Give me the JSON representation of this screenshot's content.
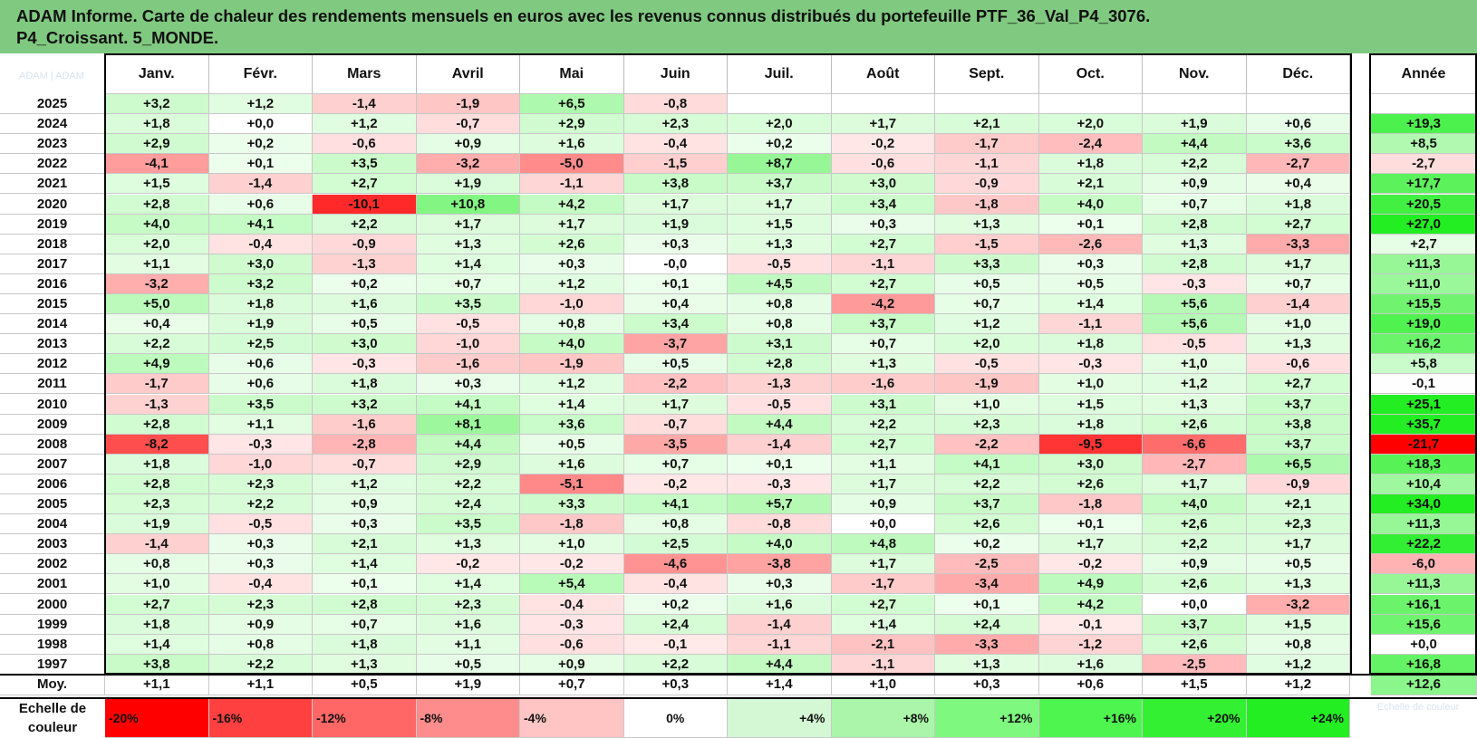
{
  "title_lines": [
    "ADAM Informe. Carte de chaleur des rendements mensuels en euros avec les revenus connus distribués du portefeuille PTF_36_Val_P4_3076.",
    "P4_Croissant. 5_MONDE."
  ],
  "corner_label": "ADAM | ADAM",
  "scale_ghost": "Echelle de couleur",
  "chart_data": {
    "type": "heatmap",
    "title": "ADAM Informe. Carte de chaleur des rendements mensuels en euros avec les revenus connus distribués du portefeuille PTF_36_Val_P4_3076. P4_Croissant. 5_MONDE.",
    "columns": [
      "Janv.",
      "Févr.",
      "Mars",
      "Avril",
      "Mai",
      "Juin",
      "Juil.",
      "Août",
      "Sept.",
      "Oct.",
      "Nov.",
      "Déc."
    ],
    "year_column": "Année",
    "rows": [
      {
        "year": "2025",
        "months": [
          "+3,2",
          "+1,2",
          "-1,4",
          "-1,9",
          "+6,5",
          "-0,8",
          "",
          "",
          "",
          "",
          "",
          ""
        ],
        "annual": ""
      },
      {
        "year": "2024",
        "months": [
          "+1,8",
          "+0,0",
          "+1,2",
          "-0,7",
          "+2,9",
          "+2,3",
          "+2,0",
          "+1,7",
          "+2,1",
          "+2,0",
          "+1,9",
          "+0,6"
        ],
        "annual": "+19,3"
      },
      {
        "year": "2023",
        "months": [
          "+2,9",
          "+0,2",
          "-0,6",
          "+0,9",
          "+1,6",
          "-0,4",
          "+0,2",
          "-0,2",
          "-1,7",
          "-2,4",
          "+4,4",
          "+3,6"
        ],
        "annual": "+8,5"
      },
      {
        "year": "2022",
        "months": [
          "-4,1",
          "+0,1",
          "+3,5",
          "-3,2",
          "-5,0",
          "-1,5",
          "+8,7",
          "-0,6",
          "-1,1",
          "+1,8",
          "+2,2",
          "-2,7"
        ],
        "annual": "-2,7"
      },
      {
        "year": "2021",
        "months": [
          "+1,5",
          "-1,4",
          "+2,7",
          "+1,9",
          "-1,1",
          "+3,8",
          "+3,7",
          "+3,0",
          "-0,9",
          "+2,1",
          "+0,9",
          "+0,4"
        ],
        "annual": "+17,7"
      },
      {
        "year": "2020",
        "months": [
          "+2,8",
          "+0,6",
          "-10,1",
          "+10,8",
          "+4,2",
          "+1,7",
          "+1,7",
          "+3,4",
          "-1,8",
          "+4,0",
          "+0,7",
          "+1,8"
        ],
        "annual": "+20,5"
      },
      {
        "year": "2019",
        "months": [
          "+4,0",
          "+4,1",
          "+2,2",
          "+1,7",
          "+1,7",
          "+1,9",
          "+1,5",
          "+0,3",
          "+1,3",
          "+0,1",
          "+2,8",
          "+2,7"
        ],
        "annual": "+27,0"
      },
      {
        "year": "2018",
        "months": [
          "+2,0",
          "-0,4",
          "-0,9",
          "+1,3",
          "+2,6",
          "+0,3",
          "+1,3",
          "+2,7",
          "-1,5",
          "-2,6",
          "+1,3",
          "-3,3"
        ],
        "annual": "+2,7"
      },
      {
        "year": "2017",
        "months": [
          "+1,1",
          "+3,0",
          "-1,3",
          "+1,4",
          "+0,3",
          "-0,0",
          "-0,5",
          "-1,1",
          "+3,3",
          "+0,3",
          "+2,8",
          "+1,7"
        ],
        "annual": "+11,3"
      },
      {
        "year": "2016",
        "months": [
          "-3,2",
          "+3,2",
          "+0,2",
          "+0,7",
          "+1,2",
          "+0,1",
          "+4,5",
          "+2,7",
          "+0,5",
          "+0,5",
          "-0,3",
          "+0,7"
        ],
        "annual": "+11,0"
      },
      {
        "year": "2015",
        "months": [
          "+5,0",
          "+1,8",
          "+1,6",
          "+3,5",
          "-1,0",
          "+0,4",
          "+0,8",
          "-4,2",
          "+0,7",
          "+1,4",
          "+5,6",
          "-1,4"
        ],
        "annual": "+15,5"
      },
      {
        "year": "2014",
        "months": [
          "+0,4",
          "+1,9",
          "+0,5",
          "-0,5",
          "+0,8",
          "+3,4",
          "+0,8",
          "+3,7",
          "+1,2",
          "-1,1",
          "+5,6",
          "+1,0"
        ],
        "annual": "+19,0"
      },
      {
        "year": "2013",
        "months": [
          "+2,2",
          "+2,5",
          "+3,0",
          "-1,0",
          "+4,0",
          "-3,7",
          "+3,1",
          "+0,7",
          "+2,0",
          "+1,8",
          "-0,5",
          "+1,3"
        ],
        "annual": "+16,2"
      },
      {
        "year": "2012",
        "months": [
          "+4,9",
          "+0,6",
          "-0,3",
          "-1,6",
          "-1,9",
          "+0,5",
          "+2,8",
          "+1,3",
          "-0,5",
          "-0,3",
          "+1,0",
          "-0,6"
        ],
        "annual": "+5,8"
      },
      {
        "year": "2011",
        "months": [
          "-1,7",
          "+0,6",
          "+1,8",
          "+0,3",
          "+1,2",
          "-2,2",
          "-1,3",
          "-1,6",
          "-1,9",
          "+1,0",
          "+1,2",
          "+2,7"
        ],
        "annual": "-0,1"
      },
      {
        "year": "2010",
        "months": [
          "-1,3",
          "+3,5",
          "+3,2",
          "+4,1",
          "+1,4",
          "+1,7",
          "-0,5",
          "+3,1",
          "+1,0",
          "+1,5",
          "+1,3",
          "+3,7"
        ],
        "annual": "+25,1"
      },
      {
        "year": "2009",
        "months": [
          "+2,8",
          "+1,1",
          "-1,6",
          "+8,1",
          "+3,6",
          "-0,7",
          "+4,4",
          "+2,2",
          "+2,3",
          "+1,8",
          "+2,6",
          "+3,8"
        ],
        "annual": "+35,7"
      },
      {
        "year": "2008",
        "months": [
          "-8,2",
          "-0,3",
          "-2,8",
          "+4,4",
          "+0,5",
          "-3,5",
          "-1,4",
          "+2,7",
          "-2,2",
          "-9,5",
          "-6,6",
          "+3,7"
        ],
        "annual": "-21,7"
      },
      {
        "year": "2007",
        "months": [
          "+1,8",
          "-1,0",
          "-0,7",
          "+2,9",
          "+1,6",
          "+0,7",
          "+0,1",
          "+1,1",
          "+4,1",
          "+3,0",
          "-2,7",
          "+6,5"
        ],
        "annual": "+18,3"
      },
      {
        "year": "2006",
        "months": [
          "+2,8",
          "+2,3",
          "+1,2",
          "+2,2",
          "-5,1",
          "-0,2",
          "-0,3",
          "+1,7",
          "+2,2",
          "+2,6",
          "+1,7",
          "-0,9"
        ],
        "annual": "+10,4"
      },
      {
        "year": "2005",
        "months": [
          "+2,3",
          "+2,2",
          "+0,9",
          "+2,4",
          "+3,3",
          "+4,1",
          "+5,7",
          "+0,9",
          "+3,7",
          "-1,8",
          "+4,0",
          "+2,1"
        ],
        "annual": "+34,0"
      },
      {
        "year": "2004",
        "months": [
          "+1,9",
          "-0,5",
          "+0,3",
          "+3,5",
          "-1,8",
          "+0,8",
          "-0,8",
          "+0,0",
          "+2,6",
          "+0,1",
          "+2,6",
          "+2,3"
        ],
        "annual": "+11,3"
      },
      {
        "year": "2003",
        "months": [
          "-1,4",
          "+0,3",
          "+2,1",
          "+1,3",
          "+1,0",
          "+2,5",
          "+4,0",
          "+4,8",
          "+0,2",
          "+1,7",
          "+2,2",
          "+1,7"
        ],
        "annual": "+22,2"
      },
      {
        "year": "2002",
        "months": [
          "+0,8",
          "+0,3",
          "+1,4",
          "-0,2",
          "-0,2",
          "-4,6",
          "-3,8",
          "+1,7",
          "-2,5",
          "-0,2",
          "+0,9",
          "+0,5"
        ],
        "annual": "-6,0"
      },
      {
        "year": "2001",
        "months": [
          "+1,0",
          "-0,4",
          "+0,1",
          "+1,4",
          "+5,4",
          "-0,4",
          "+0,3",
          "-1,7",
          "-3,4",
          "+4,9",
          "+2,6",
          "+1,3"
        ],
        "annual": "+11,3"
      },
      {
        "year": "2000",
        "months": [
          "+2,7",
          "+2,3",
          "+2,8",
          "+2,3",
          "-0,4",
          "+0,2",
          "+1,6",
          "+2,7",
          "+0,1",
          "+4,2",
          "+0,0",
          "-3,2"
        ],
        "annual": "+16,1"
      },
      {
        "year": "1999",
        "months": [
          "+1,8",
          "+0,9",
          "+0,7",
          "+1,6",
          "-0,3",
          "+2,4",
          "-1,4",
          "+1,4",
          "+2,4",
          "-0,1",
          "+3,7",
          "+1,5"
        ],
        "annual": "+15,6"
      },
      {
        "year": "1998",
        "months": [
          "+1,4",
          "+0,8",
          "+1,8",
          "+1,1",
          "-0,6",
          "-0,1",
          "-1,1",
          "-2,1",
          "-3,3",
          "-1,2",
          "+2,6",
          "+0,8"
        ],
        "annual": "+0,0"
      },
      {
        "year": "1997",
        "months": [
          "+3,8",
          "+2,2",
          "+1,3",
          "+0,5",
          "+0,9",
          "+2,2",
          "+4,4",
          "-1,1",
          "+1,3",
          "+1,6",
          "-2,5",
          "+1,2"
        ],
        "annual": "+16,8"
      }
    ],
    "average": {
      "label": "Moy.",
      "months": [
        "+1,1",
        "+1,1",
        "+0,5",
        "+1,9",
        "+0,7",
        "+0,3",
        "+1,4",
        "+1,0",
        "+0,3",
        "+0,6",
        "+1,5",
        "+1,2"
      ],
      "annual": "+12,6"
    },
    "legend": {
      "label_line1": "Echelle de",
      "label_line2": "couleur",
      "steps": [
        "-20%",
        "-16%",
        "-12%",
        "-8%",
        "-4%",
        "0%",
        "+4%",
        "+8%",
        "+12%",
        "+16%",
        "+20%",
        "+24%"
      ],
      "colors": [
        "#ff0000",
        "#ff4040",
        "#ff6666",
        "#ff8c8c",
        "#ffc4c4",
        "#ffffff",
        "#d4f7d4",
        "#aaf5aa",
        "#7ef87e",
        "#4ff54f",
        "#33f033",
        "#22ee22"
      ]
    },
    "colors": {
      "negative_max": "#ff0000",
      "neutral": "#ffffff",
      "positive_max": "#22ee22"
    }
  }
}
